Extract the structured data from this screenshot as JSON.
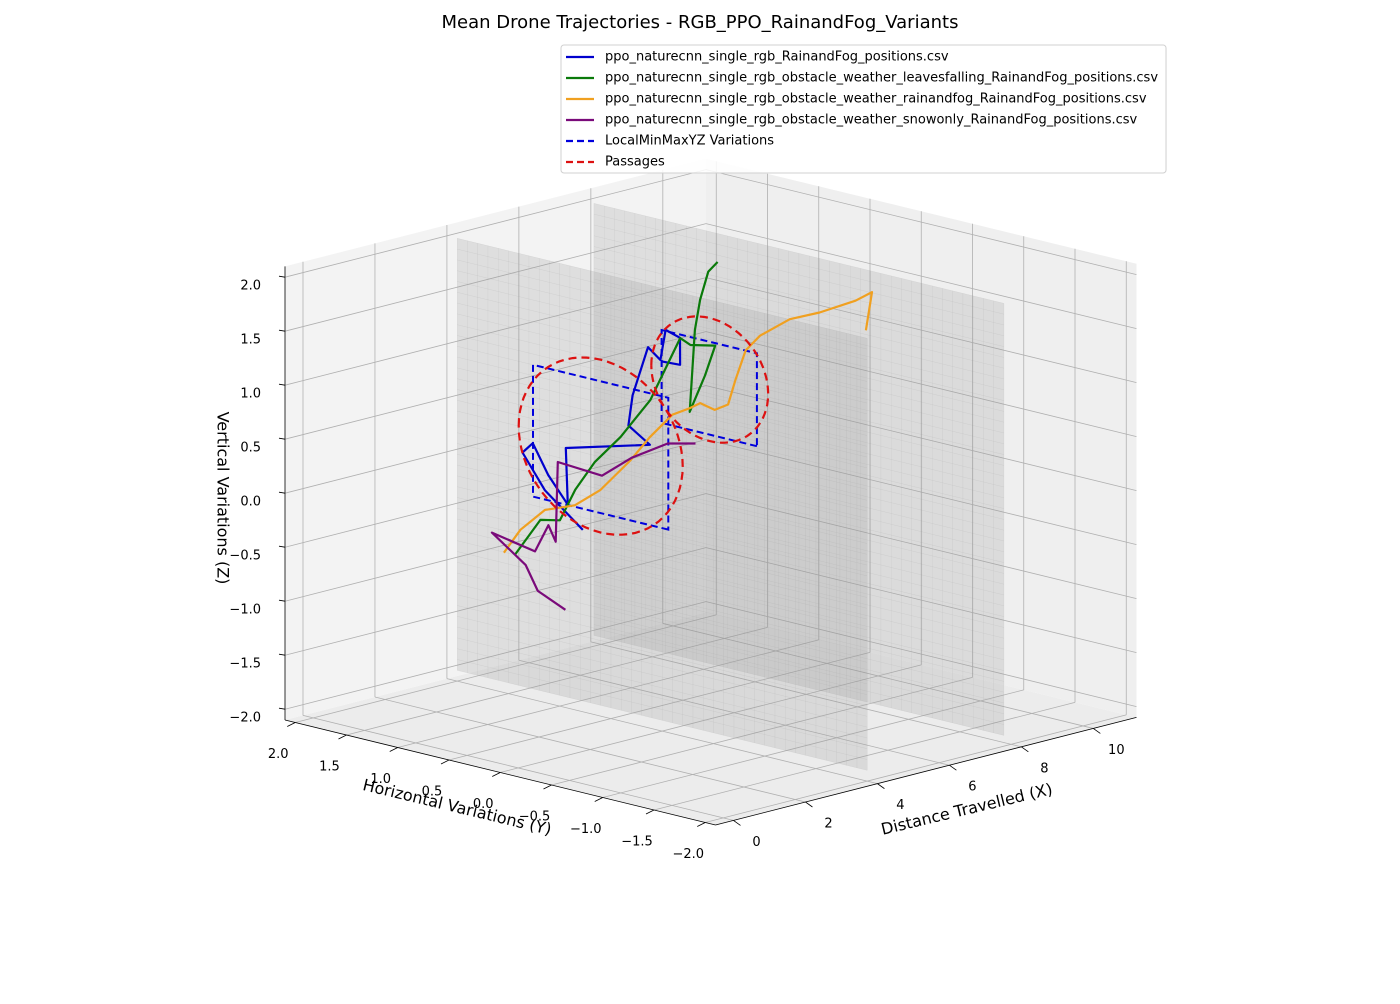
{
  "chart_data": {
    "type": "line3d",
    "title": "Mean Drone Trajectories - RGB_PPO_RainandFog_Variants",
    "xlabel": "Distance Travelled (X)",
    "ylabel": "Horizontal Variations (Y)",
    "zlabel": "Vertical Variations (Z)",
    "xlim": [
      -0.5,
      11.2
    ],
    "ylim": [
      -2.1,
      2.1
    ],
    "zlim": [
      -2.1,
      2.1
    ],
    "xticks": [
      0,
      2,
      4,
      6,
      8,
      10
    ],
    "yticks": [
      {
        "value": -2,
        "label": "−2.0"
      },
      {
        "value": -1.5,
        "label": "−1.5"
      },
      {
        "value": -1,
        "label": "−1.0"
      },
      {
        "value": -0.5,
        "label": "−0.5"
      },
      {
        "value": 0,
        "label": "0.0"
      },
      {
        "value": 0.5,
        "label": "0.5"
      },
      {
        "value": 1,
        "label": "1.0"
      },
      {
        "value": 1.5,
        "label": "1.5"
      },
      {
        "value": 2,
        "label": "2.0"
      }
    ],
    "zticks": [
      {
        "value": -2,
        "label": "−2.0"
      },
      {
        "value": -1.5,
        "label": "−1.5"
      },
      {
        "value": -1,
        "label": "−1.0"
      },
      {
        "value": -0.5,
        "label": "−0.5"
      },
      {
        "value": 0,
        "label": "0.0"
      },
      {
        "value": 0.5,
        "label": "0.5"
      },
      {
        "value": 1,
        "label": "1.0"
      },
      {
        "value": 1.5,
        "label": "1.5"
      },
      {
        "value": 2,
        "label": "2.0"
      }
    ],
    "grid": true,
    "legend": "upper right",
    "series": [
      {
        "name": "ppo_naturecnn_single_rgb_RainandFog_positions.csv",
        "color": "#0000cd",
        "x": [
          0,
          0.6,
          1.2,
          1.8,
          2.4,
          3.0,
          3.6,
          4.2,
          4.8,
          5.4,
          6.0,
          6.6,
          7.2,
          7.8,
          8.4,
          9.0
        ],
        "y": [
          -0.63,
          -0.05,
          0.38,
          0.49,
          0.55,
          0.57,
          0.8,
          0.19,
          0.61,
          0.78,
          0.84,
          0.93,
          1.09,
          1.16,
          1.37,
          1.76
        ],
        "z": [
          0.25,
          0.43,
          0.63,
          0.64,
          0.28,
          -0.05,
          0.37,
          0.49,
          0.52,
          0.71,
          1.09,
          0.9,
          1.09,
          0.95,
          0.6,
          0.49
        ]
      },
      {
        "name": "ppo_naturecnn_single_rgb_obstacle_weather_leavesfalling_RainandFog_positions.csv",
        "color": "#0a7a0a",
        "x": [
          0,
          0.7,
          1.3,
          1.9,
          2.5,
          3.1,
          3.7,
          4.3,
          4.9,
          5.5,
          6.1,
          6.7,
          7.3,
          7.9,
          8.5,
          9.1,
          9.7
        ],
        "y": [
          0.03,
          0.03,
          0.05,
          0.11,
          0.13,
          0.09,
          0.01,
          0.08,
          0.14,
          0.25,
          0.22,
          0.53,
          0.89,
          1.05,
          1.21,
          1.34,
          1.46
        ],
        "z": [
          -0.13,
          0.13,
          0.07,
          0.29,
          0.49,
          0.68,
          0.99,
          1.2,
          1.43,
          1.29,
          1.24,
          0.84,
          0.37,
          1.04,
          1.23,
          1.41,
          1.42
        ]
      },
      {
        "name": "ppo_naturecnn_single_rgb_obstacle_weather_rainandfog_RainandFog_positions.csv",
        "color": "#f0a020",
        "x": [
          0,
          0.6,
          1.2,
          1.8,
          2.4,
          3.0,
          3.6,
          4.2,
          4.8,
          5.4,
          6.0,
          6.6,
          7.2,
          7.8,
          8.4,
          9.0,
          9.6,
          10.2,
          10.6,
          10.8
        ],
        "y": [
          0.14,
          0.19,
          0.16,
          0.08,
          0.04,
          -0.04,
          -0.02,
          -0.03,
          0.01,
          0.12,
          0.19,
          0.27,
          0.41,
          0.52,
          0.59,
          0.51,
          0.43,
          0.29,
          0.27,
          0.4
        ],
        "z": [
          -0.14,
          0.01,
          0.15,
          0.16,
          0.26,
          0.5,
          0.66,
          0.82,
          0.82,
          0.79,
          0.66,
          0.64,
          0.78,
          0.98,
          1.05,
          1.17,
          1.2,
          1.29,
          1.34,
          0.94
        ]
      },
      {
        "name": "ppo_naturecnn_single_rgb_obstacle_weather_snowonly_RainandFog_positions.csv",
        "color": "#7a0a7a",
        "x": [
          0,
          0.8,
          1.6,
          2.4,
          3.2,
          4.0,
          4.8,
          5.6,
          6.4,
          7.2,
          8.0,
          8.8
        ],
        "y": [
          -0.46,
          0.09,
          0.49,
          1.1,
          0.96,
          1.11,
          1.32,
          1.58,
          1.43,
          1.42,
          1.35,
          1.36
        ],
        "z": [
          -0.53,
          -0.55,
          -0.47,
          -0.38,
          -0.59,
          -0.45,
          -0.72,
          -0.11,
          -0.27,
          -0.17,
          -0.09,
          -0.16
        ]
      }
    ],
    "regions": {
      "name": "LocalMinMaxYZ Variations",
      "color": "#0000dd",
      "x": [
        4,
        7.8
      ],
      "ymin": [
        -0.06,
        0.41
      ],
      "ymax": [
        1.26,
        1.34
      ],
      "zmin": [
        -0.22,
        0.12
      ],
      "zmax": [
        1.0,
        0.98
      ]
    },
    "passages": {
      "name": "Passages",
      "color": "#dd1111",
      "x": [
        4,
        7.8
      ],
      "y": [
        0.6,
        0.87
      ],
      "z": [
        0.4,
        0.63
      ],
      "r": [
        0.8,
        0.57
      ]
    },
    "walls": {
      "x": [
        4,
        7.8
      ],
      "y": [
        -2,
        2
      ],
      "z": [
        -2,
        2
      ]
    }
  }
}
